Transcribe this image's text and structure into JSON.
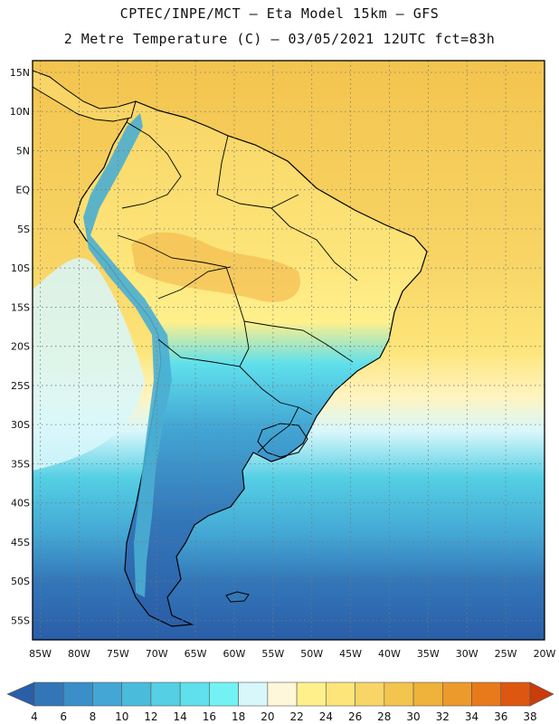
{
  "header": {
    "line1": "CPTEC/INPE/MCT –  Eta Model 15km – GFS",
    "line2": "2 Metre Temperature (C) – 03/05/2021 12UTC fct=83h"
  },
  "map": {
    "lat_labels": [
      "15N",
      "10N",
      "5N",
      "EQ",
      "5S",
      "10S",
      "15S",
      "20S",
      "25S",
      "30S",
      "35S",
      "40S",
      "45S",
      "50S",
      "55S"
    ],
    "lon_labels": [
      "85W",
      "80W",
      "75W",
      "70W",
      "65W",
      "60W",
      "55W",
      "50W",
      "45W",
      "40W",
      "35W",
      "30W",
      "25W",
      "20W"
    ],
    "lat_range": [
      -57.5,
      16.5
    ],
    "lon_range": [
      -86,
      -20
    ],
    "grid": "dotted",
    "palette": {
      "hot_ocean": "#f5d66a",
      "warm_land": "#f9d97a",
      "hot_land": "#f0b043",
      "mild": "#fff08c",
      "cool_ocean": "#5ee0ec",
      "cold_ocean": "#3a8fc8",
      "deep_cold": "#2f66ad",
      "andes": "#4aaed2"
    }
  },
  "colorbar": {
    "levels": [
      "4",
      "6",
      "8",
      "10",
      "12",
      "14",
      "16",
      "18",
      "20",
      "22",
      "24",
      "26",
      "28",
      "30",
      "32",
      "34",
      "36",
      "38"
    ],
    "colors": [
      "#2a5ea8",
      "#3376b8",
      "#3a8fc8",
      "#43a6d4",
      "#4bbbdc",
      "#55cfe4",
      "#5fe0ec",
      "#73f2f4",
      "#d8f7fb",
      "#fff7d9",
      "#fff08c",
      "#fde57a",
      "#f8d566",
      "#f3c44e",
      "#efb23a",
      "#ec9a2c",
      "#e87a1c",
      "#de5710",
      "#c93d0a"
    ]
  }
}
